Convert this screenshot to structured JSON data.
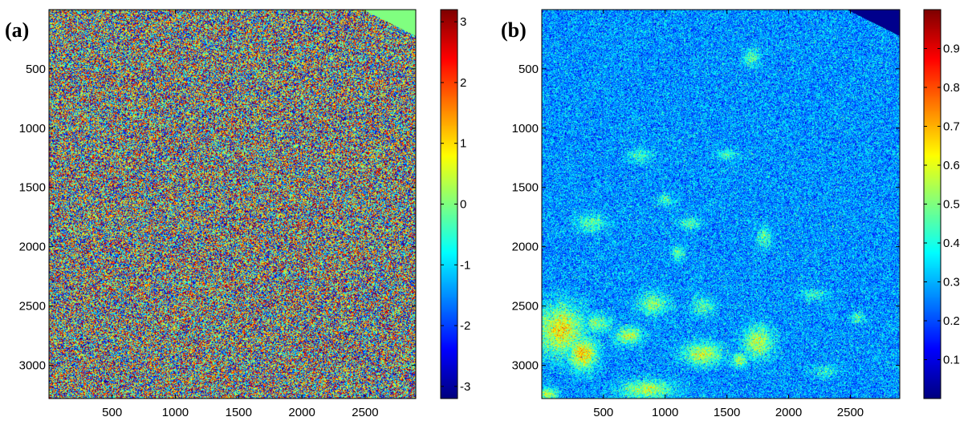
{
  "chart_data": [
    {
      "type": "heatmap",
      "panel_label": "(a)",
      "title": "",
      "xlabel": "",
      "ylabel": "",
      "xlim": [
        1,
        2900
      ],
      "ylim": [
        1,
        3280
      ],
      "y_reversed": true,
      "xticks": [
        500,
        1000,
        1500,
        2000,
        2500
      ],
      "yticks": [
        500,
        1000,
        1500,
        2000,
        2500,
        3000
      ],
      "colormap": "jet",
      "colorbar": {
        "min": -3.2,
        "max": 3.2,
        "ticks": [
          3,
          2,
          1,
          0,
          -1,
          -2,
          -3
        ]
      },
      "pattern": "uniform random values over the full range",
      "notes": "top-right corner is outside the data region, filled with constant value near 0 (green)"
    },
    {
      "type": "heatmap",
      "panel_label": "(b)",
      "title": "",
      "xlabel": "",
      "ylabel": "",
      "xlim": [
        1,
        2900
      ],
      "ylim": [
        1,
        3280
      ],
      "y_reversed": true,
      "xticks": [
        500,
        1000,
        1500,
        2000,
        2500
      ],
      "yticks": [
        500,
        1000,
        1500,
        2000,
        2500,
        3000
      ],
      "colormap": "jet",
      "colorbar": {
        "min": 0,
        "max": 1,
        "ticks": [
          0.9,
          0.8,
          0.7,
          0.6,
          0.5,
          0.4,
          0.3,
          0.2,
          0.1
        ]
      },
      "pattern": "mostly low values (about 0.2 to 0.4) with scattered higher-value patches up to about 0.7",
      "hot_patches": [
        {
          "x": 150,
          "y": 2700,
          "rx": 220,
          "ry": 250,
          "level": 0.62
        },
        {
          "x": 330,
          "y": 2900,
          "rx": 130,
          "ry": 160,
          "level": 0.66
        },
        {
          "x": 850,
          "y": 3200,
          "rx": 250,
          "ry": 90,
          "level": 0.55
        },
        {
          "x": 450,
          "y": 2650,
          "rx": 120,
          "ry": 90,
          "level": 0.5
        },
        {
          "x": 700,
          "y": 2750,
          "rx": 130,
          "ry": 90,
          "level": 0.55
        },
        {
          "x": 900,
          "y": 2480,
          "rx": 140,
          "ry": 110,
          "level": 0.5
        },
        {
          "x": 1300,
          "y": 2900,
          "rx": 180,
          "ry": 110,
          "level": 0.57
        },
        {
          "x": 1750,
          "y": 2800,
          "rx": 140,
          "ry": 160,
          "level": 0.55
        },
        {
          "x": 1600,
          "y": 2950,
          "rx": 70,
          "ry": 70,
          "level": 0.55
        },
        {
          "x": 1300,
          "y": 2500,
          "rx": 110,
          "ry": 90,
          "level": 0.45
        },
        {
          "x": 400,
          "y": 1800,
          "rx": 130,
          "ry": 90,
          "level": 0.45
        },
        {
          "x": 1200,
          "y": 1800,
          "rx": 100,
          "ry": 60,
          "level": 0.45
        },
        {
          "x": 1100,
          "y": 2050,
          "rx": 60,
          "ry": 70,
          "level": 0.45
        },
        {
          "x": 1800,
          "y": 1920,
          "rx": 70,
          "ry": 110,
          "level": 0.45
        },
        {
          "x": 1700,
          "y": 400,
          "rx": 80,
          "ry": 90,
          "level": 0.45
        },
        {
          "x": 1000,
          "y": 1600,
          "rx": 70,
          "ry": 60,
          "level": 0.45
        },
        {
          "x": 800,
          "y": 1230,
          "rx": 120,
          "ry": 70,
          "level": 0.42
        },
        {
          "x": 1500,
          "y": 1220,
          "rx": 100,
          "ry": 60,
          "level": 0.42
        },
        {
          "x": 2200,
          "y": 2400,
          "rx": 120,
          "ry": 60,
          "level": 0.42
        },
        {
          "x": 2550,
          "y": 2600,
          "rx": 60,
          "ry": 60,
          "level": 0.45
        },
        {
          "x": 2300,
          "y": 3050,
          "rx": 120,
          "ry": 60,
          "level": 0.42
        },
        {
          "x": 50,
          "y": 3240,
          "rx": 90,
          "ry": 60,
          "level": 0.55
        }
      ],
      "notes": "top-right corner is outside the data region, filled with value 0 (dark blue)"
    }
  ]
}
